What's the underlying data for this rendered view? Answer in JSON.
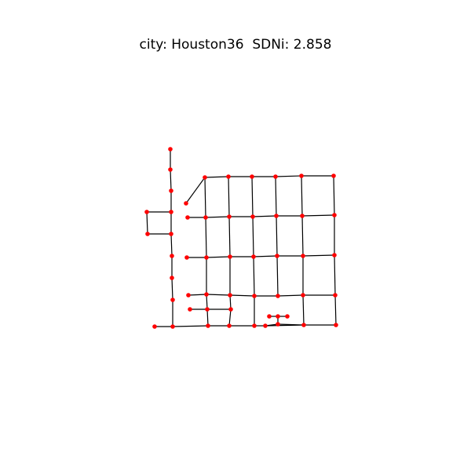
{
  "figure": {
    "title": "city: Houston36  SDNi: 2.858"
  },
  "style": {
    "node_color": "#ff0000",
    "edge_color": "#000000"
  }
}
